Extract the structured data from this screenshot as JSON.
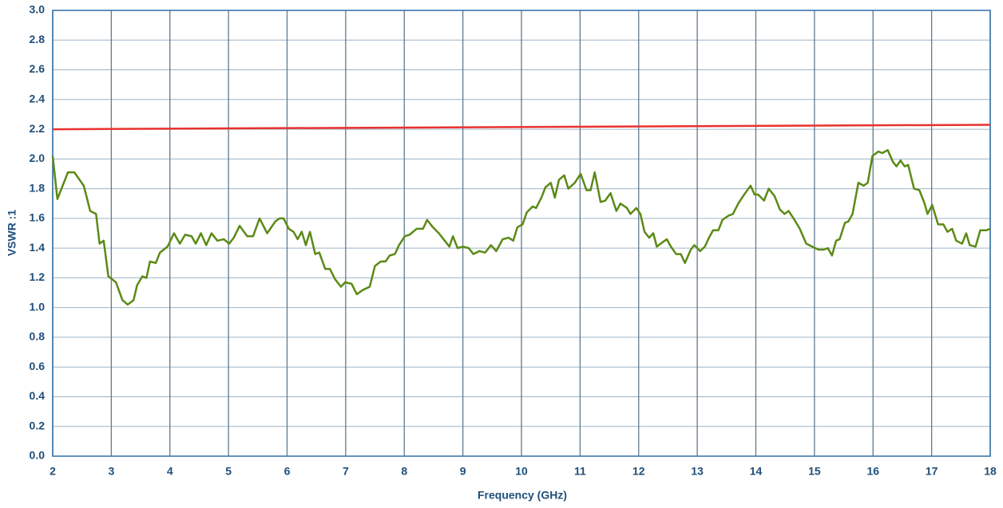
{
  "chart_data": {
    "type": "line",
    "x_label": "Frequency (GHz)",
    "y_label": "VSWR :1",
    "xlim": [
      2,
      18
    ],
    "xticks": [
      2,
      3,
      4,
      5,
      6,
      7,
      8,
      9,
      10,
      11,
      12,
      13,
      14,
      15,
      16,
      17,
      18
    ],
    "ylim": [
      0,
      3
    ],
    "yticks": [
      {
        "value": 0,
        "label": "0.0"
      },
      0.2,
      0.4,
      0.6,
      0.8,
      {
        "value": 1,
        "label": "1.0"
      },
      1.2,
      1.4,
      1.6,
      1.8,
      {
        "value": 2,
        "label": "2.0"
      },
      2.2,
      2.4,
      2.6,
      2.8,
      {
        "value": 3,
        "label": "3.0"
      }
    ],
    "grid": true,
    "series": [
      {
        "color": "#e8322f",
        "x": [
          2,
          18
        ],
        "values": [
          2.2,
          2.23
        ]
      },
      {
        "color": "#5b8a16",
        "x": [
          2.0,
          2.08,
          2.26,
          2.37,
          2.53,
          2.64,
          2.74,
          2.8,
          2.87,
          2.95,
          3.08,
          3.19,
          3.28,
          3.38,
          3.44,
          3.53,
          3.6,
          3.66,
          3.76,
          3.83,
          3.96,
          4.07,
          4.17,
          4.26,
          4.37,
          4.44,
          4.53,
          4.62,
          4.71,
          4.81,
          4.92,
          5.01,
          5.09,
          5.19,
          5.32,
          5.42,
          5.53,
          5.66,
          5.8,
          5.87,
          5.94,
          6.03,
          6.11,
          6.18,
          6.25,
          6.32,
          6.39,
          6.48,
          6.55,
          6.65,
          6.73,
          6.82,
          6.92,
          6.99,
          7.1,
          7.19,
          7.3,
          7.41,
          7.5,
          7.6,
          7.68,
          7.75,
          7.84,
          7.91,
          8.01,
          8.09,
          8.21,
          8.32,
          8.39,
          8.49,
          8.59,
          8.69,
          8.77,
          8.83,
          8.91,
          9.0,
          9.1,
          9.18,
          9.28,
          9.38,
          9.48,
          9.57,
          9.68,
          9.78,
          9.86,
          9.93,
          10.02,
          10.09,
          10.19,
          10.25,
          10.34,
          10.41,
          10.5,
          10.57,
          10.64,
          10.73,
          10.8,
          10.91,
          11.01,
          11.11,
          11.18,
          11.25,
          11.35,
          11.43,
          11.52,
          11.62,
          11.69,
          11.8,
          11.86,
          11.96,
          12.03,
          12.1,
          12.18,
          12.25,
          12.31,
          12.41,
          12.48,
          12.55,
          12.64,
          12.72,
          12.79,
          12.89,
          12.95,
          13.05,
          13.13,
          13.2,
          13.27,
          13.36,
          13.43,
          13.54,
          13.61,
          13.7,
          13.8,
          13.91,
          13.98,
          14.04,
          14.14,
          14.22,
          14.32,
          14.41,
          14.49,
          14.56,
          14.66,
          14.75,
          14.86,
          14.96,
          15.07,
          15.16,
          15.23,
          15.3,
          15.37,
          15.43,
          15.52,
          15.58,
          15.65,
          15.75,
          15.84,
          15.91,
          15.99,
          16.09,
          16.16,
          16.25,
          16.34,
          16.4,
          16.47,
          16.54,
          16.6,
          16.7,
          16.79,
          16.88,
          16.93,
          17.01,
          17.11,
          17.2,
          17.27,
          17.35,
          17.42,
          17.52,
          17.59,
          17.65,
          17.75,
          17.83,
          17.93,
          18.0
        ],
        "values": [
          2.02,
          1.73,
          1.91,
          1.91,
          1.82,
          1.65,
          1.63,
          1.43,
          1.45,
          1.21,
          1.17,
          1.05,
          1.02,
          1.05,
          1.15,
          1.21,
          1.2,
          1.31,
          1.3,
          1.37,
          1.41,
          1.5,
          1.43,
          1.49,
          1.48,
          1.43,
          1.5,
          1.42,
          1.5,
          1.45,
          1.46,
          1.43,
          1.47,
          1.55,
          1.48,
          1.48,
          1.6,
          1.5,
          1.58,
          1.6,
          1.6,
          1.53,
          1.51,
          1.46,
          1.51,
          1.42,
          1.51,
          1.36,
          1.37,
          1.26,
          1.26,
          1.19,
          1.14,
          1.17,
          1.16,
          1.09,
          1.12,
          1.14,
          1.28,
          1.31,
          1.31,
          1.35,
          1.36,
          1.42,
          1.48,
          1.49,
          1.53,
          1.53,
          1.59,
          1.54,
          1.5,
          1.45,
          1.41,
          1.48,
          1.4,
          1.41,
          1.4,
          1.36,
          1.38,
          1.37,
          1.42,
          1.38,
          1.46,
          1.47,
          1.45,
          1.54,
          1.56,
          1.64,
          1.68,
          1.67,
          1.74,
          1.81,
          1.84,
          1.74,
          1.86,
          1.89,
          1.8,
          1.84,
          1.9,
          1.79,
          1.79,
          1.91,
          1.71,
          1.72,
          1.77,
          1.65,
          1.7,
          1.67,
          1.63,
          1.67,
          1.63,
          1.51,
          1.47,
          1.5,
          1.41,
          1.44,
          1.46,
          1.41,
          1.36,
          1.36,
          1.3,
          1.39,
          1.42,
          1.38,
          1.41,
          1.47,
          1.52,
          1.52,
          1.59,
          1.62,
          1.63,
          1.7,
          1.76,
          1.82,
          1.76,
          1.76,
          1.72,
          1.8,
          1.75,
          1.66,
          1.63,
          1.65,
          1.59,
          1.53,
          1.43,
          1.41,
          1.39,
          1.39,
          1.4,
          1.35,
          1.45,
          1.46,
          1.57,
          1.58,
          1.63,
          1.84,
          1.82,
          1.84,
          2.02,
          2.05,
          2.04,
          2.06,
          1.98,
          1.95,
          1.99,
          1.95,
          1.96,
          1.8,
          1.79,
          1.7,
          1.63,
          1.69,
          1.56,
          1.56,
          1.51,
          1.53,
          1.45,
          1.43,
          1.5,
          1.42,
          1.41,
          1.52,
          1.52,
          1.53
        ]
      }
    ]
  }
}
